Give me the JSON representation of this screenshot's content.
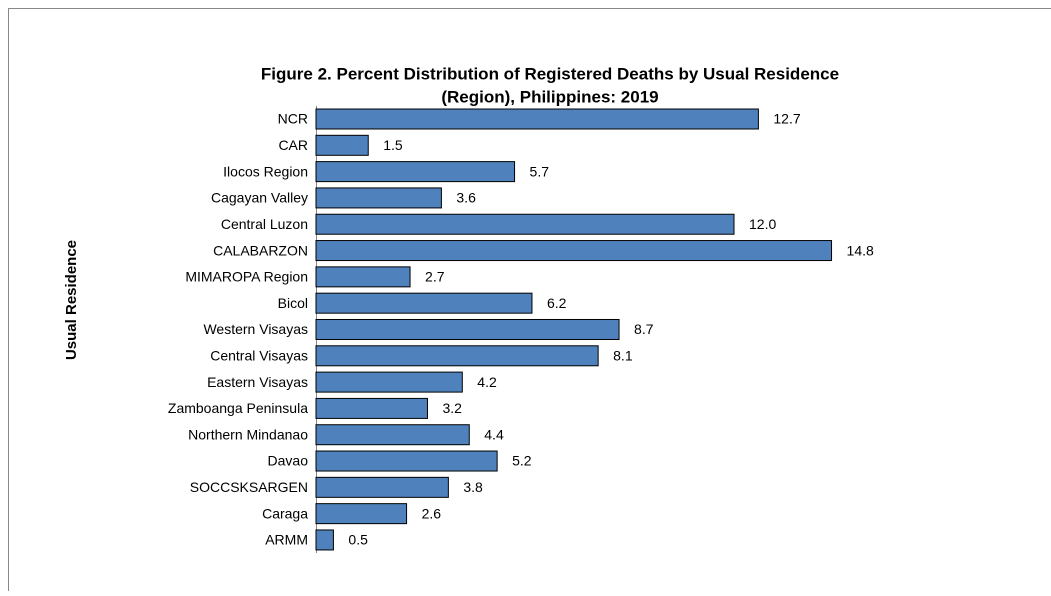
{
  "chart_data": {
    "type": "barh",
    "title": "Figure 2.  Percent Distribution of Registered Deaths by Usual Residence",
    "subtitle": "(Region), Philippines: 2019",
    "y_label": "Usual Residence",
    "categories": [
      "NCR",
      "CAR",
      "Ilocos Region",
      "Cagayan Valley",
      "Central Luzon",
      "CALABARZON",
      "MIMAROPA Region",
      "Bicol",
      "Western Visayas",
      "Central Visayas",
      "Eastern Visayas",
      "Zamboanga Peninsula",
      "Northern Mindanao",
      "Davao",
      "SOCCSKSARGEN",
      "Caraga",
      "ARMM"
    ],
    "values": [
      12.7,
      1.5,
      5.7,
      3.6,
      12,
      14.8,
      2.7,
      6.2,
      8.7,
      8.1,
      4.2,
      3.2,
      4.4,
      5.2,
      3.8,
      2.6,
      0.5
    ],
    "value_labels": [
      "12.7",
      "1.5",
      "5.7",
      "3.6",
      "12.0",
      "14.8",
      "2.7",
      "6.2",
      "8.7",
      "8.1",
      "4.2",
      "3.2",
      "4.4",
      "5.2",
      "3.8",
      "2.6",
      "0.5"
    ],
    "color": "#4f81bd",
    "xlim": [
      0,
      18
    ]
  }
}
